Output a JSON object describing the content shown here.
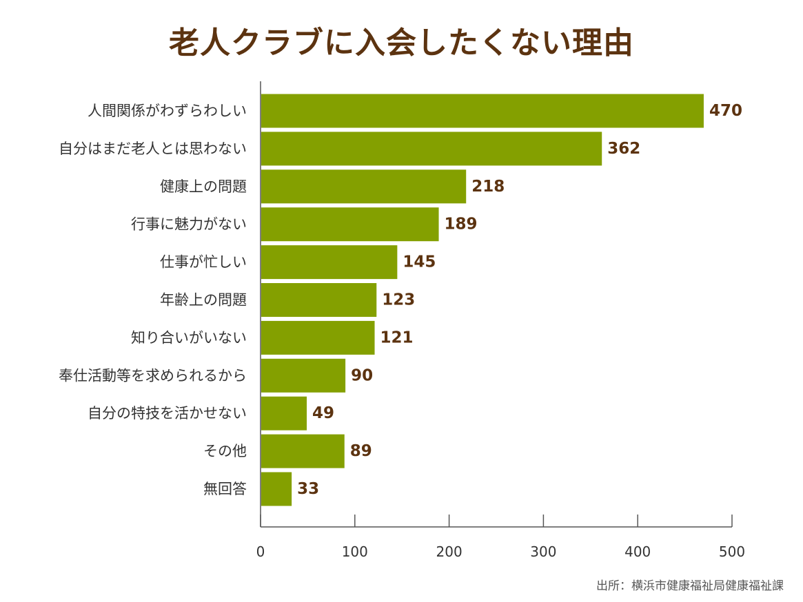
{
  "chart_data": {
    "type": "bar",
    "orientation": "horizontal",
    "title": "老人クラブに入会したくない理由",
    "categories": [
      "人間関係がわずらわしい",
      "自分はまだ老人とは思わない",
      "健康上の問題",
      "行事に魅力がない",
      "仕事が忙しい",
      "年齢上の問題",
      "知り合いがいない",
      "奉仕活動等を求められるから",
      "自分の特技を活かせない",
      "その他",
      "無回答"
    ],
    "values": [
      470,
      362,
      218,
      189,
      145,
      123,
      121,
      90,
      49,
      89,
      33
    ],
    "xlim": [
      0,
      500
    ],
    "x_ticks": [
      0,
      100,
      200,
      300,
      400,
      500
    ],
    "xlabel": "",
    "ylabel": "",
    "grid": false,
    "legend": "none",
    "source": "出所：横浜市健康福祉局健康福祉課"
  },
  "colors": {
    "bar": "#84a000",
    "title": "#5c3310",
    "value_label": "#5c3310",
    "axis": "#555555"
  }
}
